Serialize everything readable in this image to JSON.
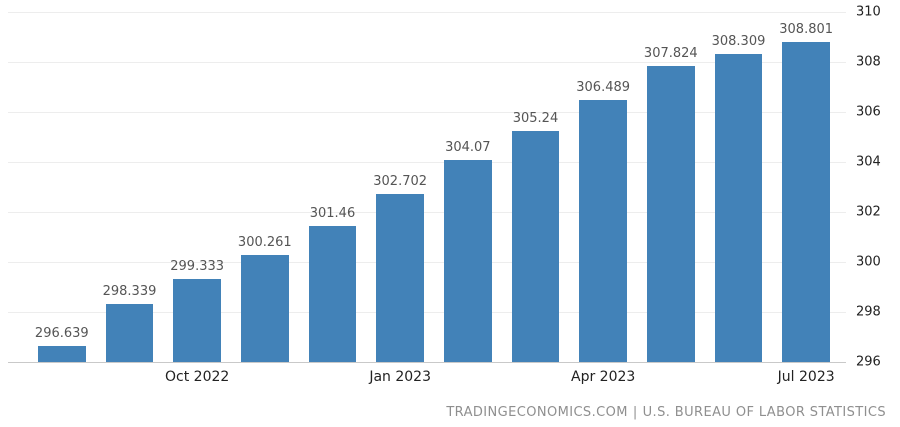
{
  "chart_data": {
    "type": "bar",
    "values": [
      296.639,
      298.339,
      299.333,
      300.261,
      301.46,
      302.702,
      304.07,
      305.24,
      306.489,
      307.824,
      308.309,
      308.801
    ],
    "value_labels": [
      "296.639",
      "298.339",
      "299.333",
      "300.261",
      "301.46",
      "302.702",
      "304.07",
      "305.24",
      "306.489",
      "307.824",
      "308.309",
      "308.801"
    ],
    "x_axis": {
      "ticks": [
        {
          "index": 2,
          "label": "Oct 2022"
        },
        {
          "index": 5,
          "label": "Jan 2023"
        },
        {
          "index": 8,
          "label": "Apr 2023"
        },
        {
          "index": 11,
          "label": "Jul 2023"
        }
      ]
    },
    "y_axis": {
      "min": 296,
      "max": 310,
      "ticks": [
        296,
        298,
        300,
        302,
        304,
        306,
        308,
        310
      ],
      "position": "right"
    },
    "title": "",
    "grid": "horizontal",
    "legend": "none",
    "colors": {
      "bar": "#4282b8",
      "value_label": "#555555",
      "axis_label": "#222222",
      "grid_line": "#ededed",
      "axis_line": "#c9c9c9",
      "attribution": "#8f8f8f"
    }
  },
  "attribution": {
    "source_left": "TRADINGECONOMICS.COM",
    "separator": "|",
    "source_right": "U.S. BUREAU OF LABOR STATISTICS"
  }
}
